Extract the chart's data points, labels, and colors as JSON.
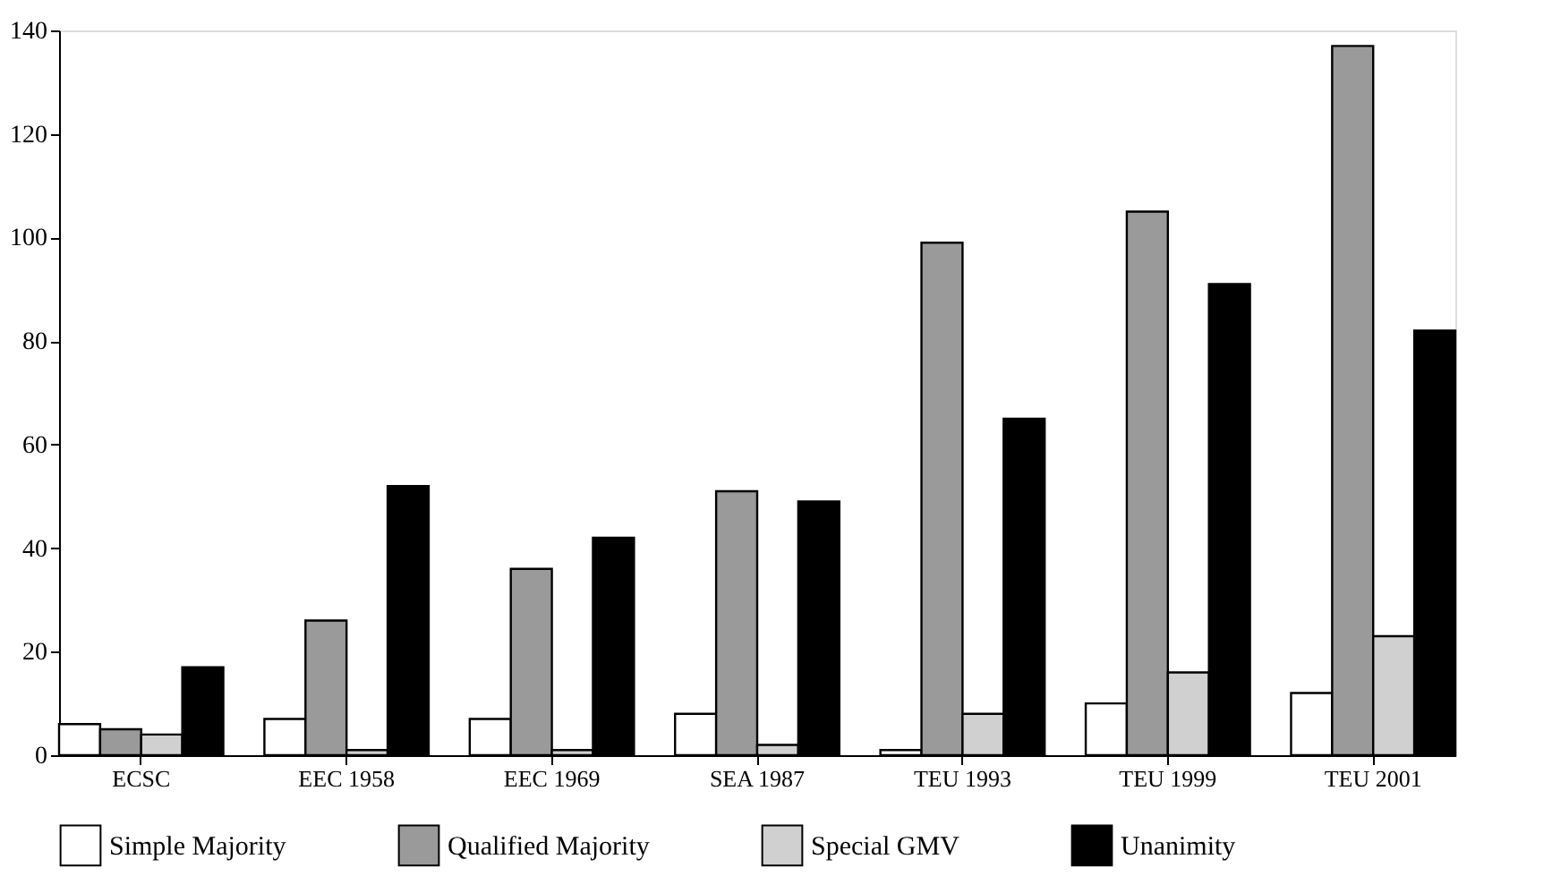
{
  "chart_data": {
    "type": "bar",
    "categories": [
      "ECSC",
      "EEC 1958",
      "EEC 1969",
      "SEA 1987",
      "TEU 1993",
      "TEU 1999",
      "TEU 2001"
    ],
    "series": [
      {
        "name": "Simple Majority",
        "color": "#ffffff",
        "values": [
          6,
          7,
          7,
          8,
          1,
          10,
          12
        ]
      },
      {
        "name": "Qualified Majority",
        "color": "#9a9a9a",
        "values": [
          5,
          26,
          36,
          51,
          99,
          105,
          137
        ]
      },
      {
        "name": "Special GMV",
        "color": "#d0d0d0",
        "values": [
          4,
          1,
          1,
          2,
          8,
          16,
          23
        ]
      },
      {
        "name": "Unanimity",
        "color": "#000000",
        "values": [
          17,
          52,
          42,
          49,
          65,
          91,
          82
        ]
      }
    ],
    "ylim": [
      0,
      140
    ],
    "yticks": [
      0,
      20,
      40,
      60,
      80,
      100,
      120,
      140
    ],
    "grid": false,
    "legend": "bottom"
  }
}
